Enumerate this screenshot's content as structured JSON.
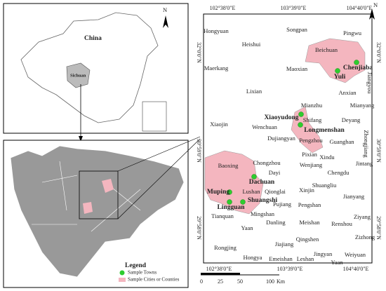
{
  "compass_label": "N",
  "china_map": {
    "country_label": "China",
    "province_label": "Sichuan"
  },
  "legend": {
    "title": "Legend",
    "items": [
      "Sample Towns",
      "Sample Cities or Counties"
    ]
  },
  "study_area": {
    "longitude_labels": [
      "102°38'0\"E",
      "103°39'0\"E",
      "104°40'0\"E"
    ],
    "latitude_labels": [
      "32°0'0\"N",
      "30°59'0\"N",
      "29°58'0\"N"
    ],
    "places": [
      "Hongyuan",
      "Songpan",
      "Pingwu",
      "Heishui",
      "Beichuan",
      "Maerkang",
      "Maoxian",
      "Anxian",
      "Lixian",
      "Mianzhu",
      "Mianyang",
      "Shifang",
      "Deyang",
      "Xiaojin",
      "Wenchuan",
      "Dujiangyan",
      "Pengzhou",
      "Guanghan",
      "Pixian",
      "Xindu",
      "Chongzhou",
      "Wenjiang",
      "Jintang",
      "Dayi",
      "Chengdu",
      "Baoxing",
      "Shuangliu",
      "Qionglai",
      "Xinjin",
      "Lushan",
      "Jianyang",
      "Pujiang",
      "Pengshan",
      "Tianquan",
      "Mingshan",
      "Ziyang",
      "Yaan",
      "Danling",
      "Meishan",
      "Renshou",
      "Zizhong",
      "Qingshen",
      "Rongjing",
      "Jiajiang",
      "Jingyan",
      "Weiyuan",
      "Hongya",
      "Emeishan",
      "Leshan",
      "Yaan"
    ],
    "rotated_places": [
      "Jiangyou",
      "Zhongjiang"
    ],
    "sample_towns": [
      "Chenjiaba",
      "Yuli",
      "Xiaoyudong",
      "Longmenshan",
      "Dachuan",
      "Muping",
      "Lingguan",
      "Shuangshi"
    ]
  },
  "scale_bar": {
    "ticks": [
      "0",
      "25",
      "50",
      "100"
    ],
    "unit": "Km"
  }
}
